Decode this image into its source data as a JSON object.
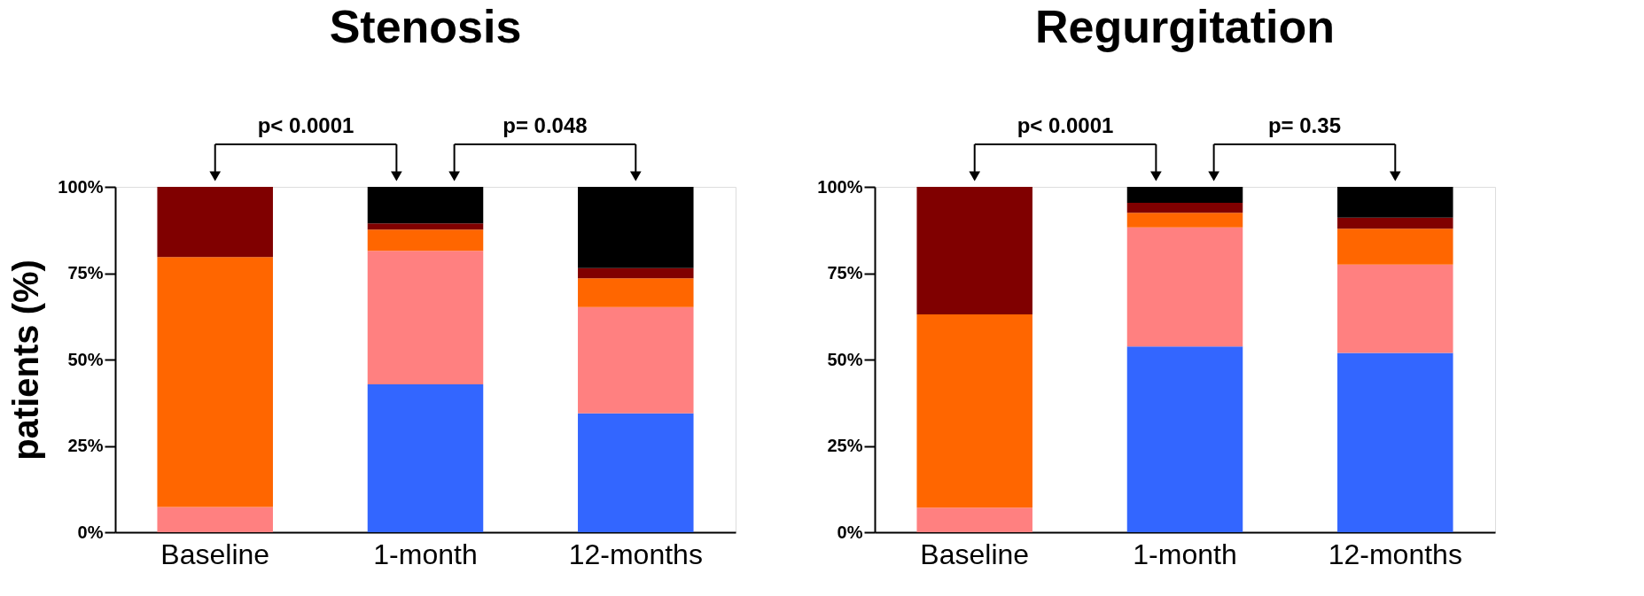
{
  "chart_data": [
    {
      "type": "bar",
      "title": "Stenosis",
      "ylabel": "patients (%)",
      "categories": [
        "Baseline",
        "1-month",
        "12-months"
      ],
      "stacked": true,
      "grid": false,
      "legend": false,
      "series": [
        {
          "color": "#3366ff",
          "values": [
            0,
            42.8,
            34.4
          ]
        },
        {
          "color": "#ff8080",
          "values": [
            7.3,
            38.7,
            30.8
          ]
        },
        {
          "color": "#ff6600",
          "values": [
            72.4,
            6.1,
            8.3
          ]
        },
        {
          "color": "#800000",
          "values": [
            20.3,
            1.8,
            3.0
          ]
        },
        {
          "color": "#000000",
          "values": [
            0,
            10.6,
            23.5
          ]
        }
      ],
      "ylim": [
        0,
        100
      ],
      "yticks": [
        {
          "value": 0,
          "label": "0%"
        },
        {
          "value": 25,
          "label": "25%"
        },
        {
          "value": 50,
          "label": "50%"
        },
        {
          "value": 75,
          "label": "75%"
        },
        {
          "value": 100,
          "label": "100%"
        }
      ],
      "annotations": [
        "p< 0.0001",
        "p= 0.048"
      ]
    },
    {
      "type": "bar",
      "title": "Regurgitation",
      "categories": [
        "Baseline",
        "1-month",
        "12-months"
      ],
      "stacked": true,
      "grid": false,
      "legend": false,
      "series": [
        {
          "color": "#3366ff",
          "values": [
            0,
            53.8,
            51.9
          ]
        },
        {
          "color": "#ff8080",
          "values": [
            7.1,
            34.5,
            25.6
          ]
        },
        {
          "color": "#ff6600",
          "values": [
            56.0,
            4.2,
            10.4
          ]
        },
        {
          "color": "#800000",
          "values": [
            36.9,
            2.9,
            3.2
          ]
        },
        {
          "color": "#000000",
          "values": [
            0,
            4.6,
            8.9
          ]
        }
      ],
      "ylim": [
        0,
        100
      ],
      "yticks": [
        {
          "value": 0,
          "label": "0%"
        },
        {
          "value": 25,
          "label": "25%"
        },
        {
          "value": 50,
          "label": "50%"
        },
        {
          "value": 75,
          "label": "75%"
        },
        {
          "value": 100,
          "label": "100%"
        }
      ],
      "annotations": [
        "p< 0.0001",
        "p= 0.35"
      ]
    }
  ]
}
